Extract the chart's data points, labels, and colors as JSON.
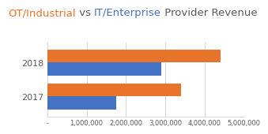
{
  "title_parts": [
    {
      "text": "OT/Industrial",
      "color": "#E8732A"
    },
    {
      "text": " vs ",
      "color": "#595959"
    },
    {
      "text": "IT/Enterprise",
      "color": "#4472C4"
    },
    {
      "text": " Provider Revenue",
      "color": "#595959"
    }
  ],
  "years": [
    "2018",
    "2017"
  ],
  "ot_values": [
    4400000,
    3400000
  ],
  "it_values": [
    2900000,
    1750000
  ],
  "ot_color": "#E8732A",
  "it_color": "#4472C4",
  "xlim": [
    0,
    5000000
  ],
  "xticks": [
    0,
    1000000,
    2000000,
    3000000,
    4000000,
    5000000
  ],
  "xtick_labels": [
    "-",
    "1,000,000",
    "2,000,000",
    "3,000,000",
    "4,000,000",
    "5,000,000"
  ],
  "background_color": "#FFFFFF",
  "bar_height": 0.38,
  "title_fontsize": 9.5,
  "ytick_fontsize": 8,
  "xtick_fontsize": 6
}
